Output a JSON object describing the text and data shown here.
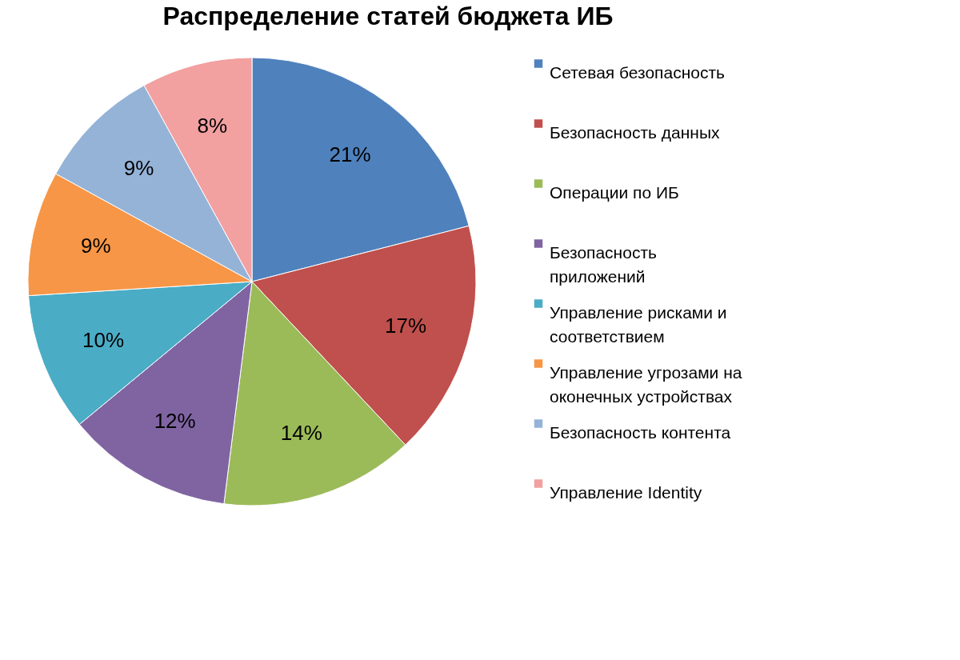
{
  "chart_data": {
    "type": "pie",
    "title": "Распределение статей бюджета ИБ",
    "categories": [
      "Сетевая безопасность",
      "Безопасность данных",
      "Операции по ИБ",
      "Безопасность приложений",
      "Управление рисками и соответствием",
      "Управление угрозами на оконечных устройствах",
      "Безопасность контента",
      "Управление Identity"
    ],
    "values": [
      21,
      17,
      14,
      12,
      10,
      9,
      9,
      8
    ],
    "value_labels": [
      "21%",
      "17%",
      "14%",
      "12%",
      "10%",
      "9%",
      "9%",
      "8%"
    ],
    "colors": [
      "#4f81bd",
      "#c0504d",
      "#9bbb59",
      "#8064a2",
      "#4bacc6",
      "#f79646",
      "#95b3d7",
      "#f2a0a0"
    ],
    "legend": "right"
  }
}
